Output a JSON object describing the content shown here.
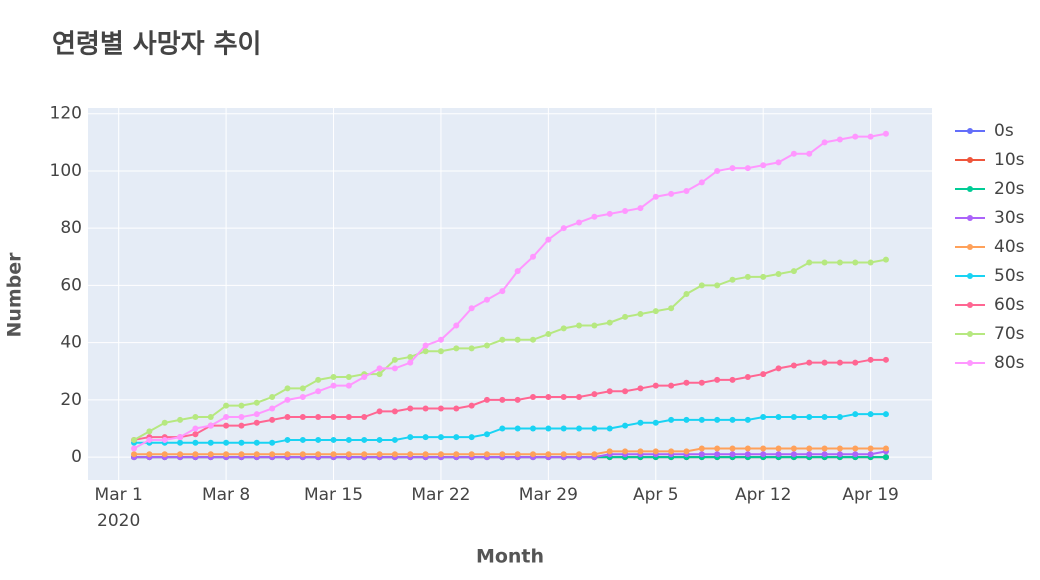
{
  "chart_data": {
    "type": "line",
    "title": "연령별 사망자 추이",
    "x_label": "Month",
    "y_label": "Number",
    "x_year_label": "2020",
    "x": [
      "2020-03-02",
      "2020-03-03",
      "2020-03-04",
      "2020-03-05",
      "2020-03-06",
      "2020-03-07",
      "2020-03-08",
      "2020-03-09",
      "2020-03-10",
      "2020-03-11",
      "2020-03-12",
      "2020-03-13",
      "2020-03-14",
      "2020-03-15",
      "2020-03-16",
      "2020-03-17",
      "2020-03-18",
      "2020-03-19",
      "2020-03-20",
      "2020-03-21",
      "2020-03-22",
      "2020-03-23",
      "2020-03-24",
      "2020-03-25",
      "2020-03-26",
      "2020-03-27",
      "2020-03-28",
      "2020-03-29",
      "2020-03-30",
      "2020-03-31",
      "2020-04-01",
      "2020-04-02",
      "2020-04-03",
      "2020-04-04",
      "2020-04-05",
      "2020-04-06",
      "2020-04-07",
      "2020-04-08",
      "2020-04-09",
      "2020-04-10",
      "2020-04-11",
      "2020-04-12",
      "2020-04-13",
      "2020-04-14",
      "2020-04-15",
      "2020-04-16",
      "2020-04-17",
      "2020-04-18",
      "2020-04-19",
      "2020-04-20"
    ],
    "xlim": [
      "2020-02-28",
      "2020-04-23"
    ],
    "xticks": [
      {
        "value": "2020-03-01",
        "label": "Mar 1"
      },
      {
        "value": "2020-03-08",
        "label": "Mar 8"
      },
      {
        "value": "2020-03-15",
        "label": "Mar 15"
      },
      {
        "value": "2020-03-22",
        "label": "Mar 22"
      },
      {
        "value": "2020-03-29",
        "label": "Mar 29"
      },
      {
        "value": "2020-04-05",
        "label": "Apr 5"
      },
      {
        "value": "2020-04-12",
        "label": "Apr 12"
      },
      {
        "value": "2020-04-19",
        "label": "Apr 19"
      }
    ],
    "ylim": [
      -8,
      122
    ],
    "yticks": [
      0,
      20,
      40,
      60,
      80,
      100,
      120
    ],
    "grid": true,
    "legend": "right",
    "series": [
      {
        "name": "0s",
        "color": "#636efa",
        "values": [
          0,
          0,
          0,
          0,
          0,
          0,
          0,
          0,
          0,
          0,
          0,
          0,
          0,
          0,
          0,
          0,
          0,
          0,
          0,
          0,
          0,
          0,
          0,
          0,
          0,
          0,
          0,
          0,
          0,
          0,
          0,
          0,
          0,
          0,
          0,
          0,
          0,
          0,
          0,
          0,
          0,
          0,
          0,
          0,
          0,
          0,
          0,
          0,
          0,
          0
        ]
      },
      {
        "name": "10s",
        "color": "#EF553B",
        "values": [
          0,
          0,
          0,
          0,
          0,
          0,
          0,
          0,
          0,
          0,
          0,
          0,
          0,
          0,
          0,
          0,
          0,
          0,
          0,
          0,
          0,
          0,
          0,
          0,
          0,
          0,
          0,
          0,
          0,
          0,
          0,
          0,
          0,
          0,
          0,
          0,
          0,
          0,
          0,
          0,
          0,
          0,
          0,
          0,
          0,
          0,
          0,
          0,
          0,
          0
        ]
      },
      {
        "name": "20s",
        "color": "#00cc96",
        "values": [
          0,
          0,
          0,
          0,
          0,
          0,
          0,
          0,
          0,
          0,
          0,
          0,
          0,
          0,
          0,
          0,
          0,
          0,
          0,
          0,
          0,
          0,
          0,
          0,
          0,
          0,
          0,
          0,
          0,
          0,
          0,
          0,
          0,
          0,
          0,
          0,
          0,
          0,
          0,
          0,
          0,
          0,
          0,
          0,
          0,
          0,
          0,
          0,
          0,
          0
        ]
      },
      {
        "name": "30s",
        "color": "#ab63fa",
        "values": [
          0,
          0,
          0,
          0,
          0,
          0,
          0,
          0,
          0,
          0,
          0,
          0,
          0,
          0,
          0,
          0,
          0,
          0,
          0,
          0,
          0,
          0,
          0,
          0,
          0,
          0,
          0,
          0,
          0,
          0,
          0,
          1,
          1,
          1,
          1,
          1,
          1,
          1,
          1,
          1,
          1,
          1,
          1,
          1,
          1,
          1,
          1,
          1,
          1,
          2
        ]
      },
      {
        "name": "40s",
        "color": "#FFA15A",
        "values": [
          1,
          1,
          1,
          1,
          1,
          1,
          1,
          1,
          1,
          1,
          1,
          1,
          1,
          1,
          1,
          1,
          1,
          1,
          1,
          1,
          1,
          1,
          1,
          1,
          1,
          1,
          1,
          1,
          1,
          1,
          1,
          2,
          2,
          2,
          2,
          2,
          2,
          3,
          3,
          3,
          3,
          3,
          3,
          3,
          3,
          3,
          3,
          3,
          3,
          3
        ]
      },
      {
        "name": "50s",
        "color": "#19d3f3",
        "values": [
          5,
          5,
          5,
          5,
          5,
          5,
          5,
          5,
          5,
          5,
          6,
          6,
          6,
          6,
          6,
          6,
          6,
          6,
          7,
          7,
          7,
          7,
          7,
          8,
          10,
          10,
          10,
          10,
          10,
          10,
          10,
          10,
          11,
          12,
          12,
          13,
          13,
          13,
          13,
          13,
          13,
          14,
          14,
          14,
          14,
          14,
          14,
          15,
          15,
          15
        ]
      },
      {
        "name": "60s",
        "color": "#FF6692",
        "values": [
          6,
          7,
          7,
          7,
          8,
          11,
          11,
          11,
          12,
          13,
          14,
          14,
          14,
          14,
          14,
          14,
          16,
          16,
          17,
          17,
          17,
          17,
          18,
          20,
          20,
          20,
          21,
          21,
          21,
          21,
          22,
          23,
          23,
          24,
          25,
          25,
          26,
          26,
          27,
          27,
          28,
          29,
          31,
          32,
          33,
          33,
          33,
          33,
          34,
          34
        ]
      },
      {
        "name": "70s",
        "color": "#B6E880",
        "values": [
          6,
          9,
          12,
          13,
          14,
          14,
          18,
          18,
          19,
          21,
          24,
          24,
          27,
          28,
          28,
          29,
          29,
          34,
          35,
          37,
          37,
          38,
          38,
          39,
          41,
          41,
          41,
          43,
          45,
          46,
          46,
          47,
          49,
          50,
          51,
          52,
          57,
          60,
          60,
          62,
          63,
          63,
          64,
          65,
          68,
          68,
          68,
          68,
          68,
          69
        ]
      },
      {
        "name": "80s",
        "color": "#FF97FF",
        "values": [
          3,
          6,
          6,
          7,
          10,
          11,
          14,
          14,
          15,
          17,
          20,
          21,
          23,
          25,
          25,
          28,
          31,
          31,
          33,
          39,
          41,
          46,
          52,
          55,
          58,
          65,
          70,
          76,
          80,
          82,
          84,
          85,
          86,
          87,
          91,
          92,
          93,
          96,
          100,
          101,
          101,
          102,
          103,
          106,
          106,
          110,
          111,
          112,
          112,
          113
        ]
      }
    ]
  }
}
